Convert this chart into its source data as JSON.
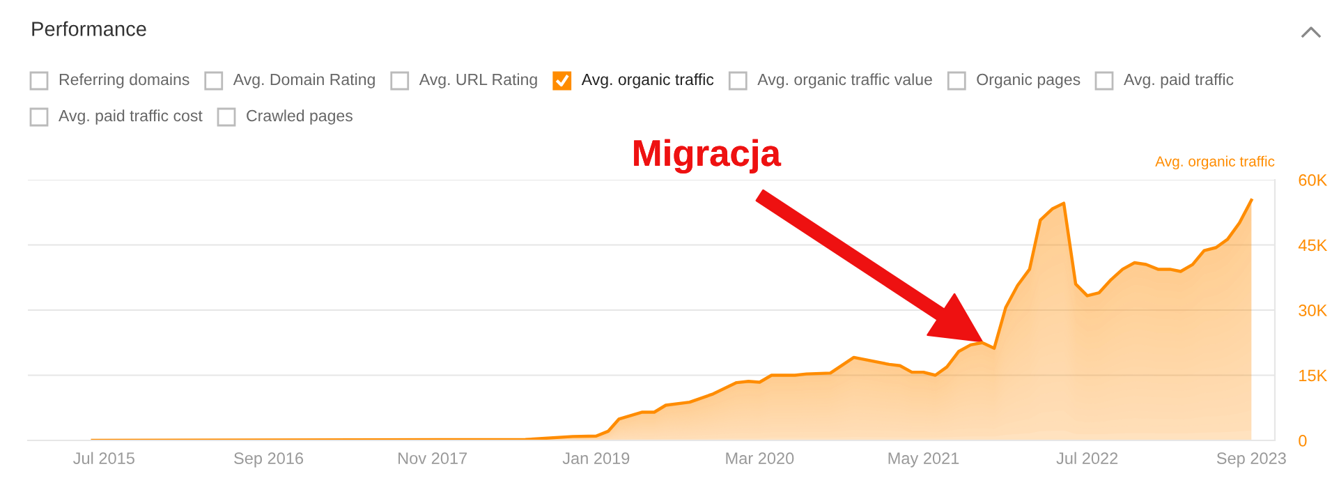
{
  "chart_data": {
    "type": "area",
    "title": "Performance",
    "ylabel": "Avg. organic traffic",
    "annotations": [
      "Referring domains",
      "Avg. Domain Rating",
      "Avg. URL Rating",
      "Avg. organic traffic value",
      "Organic pages",
      "Avg. paid traffic",
      "Avg. paid traffic cost",
      "Crawled pages",
      "Migracja"
    ],
    "x": [
      "2015-06",
      "2018-07",
      "2018-11",
      "2019-01",
      "2019-02",
      "2019-03",
      "2019-05",
      "2019-06",
      "2019-07",
      "2019-09",
      "2019-11",
      "2020-01",
      "2020-02",
      "2020-03",
      "2020-04",
      "2020-06",
      "2020-07",
      "2020-09",
      "2020-11",
      "2021-02",
      "2021-03",
      "2021-04",
      "2021-05",
      "2021-06",
      "2021-07",
      "2021-08",
      "2021-09",
      "2021-10",
      "2021-11",
      "2021-12",
      "2022-01",
      "2022-02",
      "2022-03",
      "2022-04",
      "2022-05",
      "2022-06",
      "2022-07",
      "2022-08",
      "2022-09",
      "2022-10",
      "2022-11",
      "2022-12",
      "2023-01",
      "2023-02",
      "2023-03",
      "2023-04",
      "2023-05",
      "2023-06",
      "2023-07",
      "2023-08",
      "2023-09"
    ],
    "series": [
      {
        "name": "Avg. organic traffic",
        "color": "#ff8c00",
        "values": [
          0,
          200,
          900,
          1000,
          2100,
          4900,
          6500,
          6500,
          8100,
          8800,
          10700,
          13300,
          13600,
          13400,
          15000,
          15000,
          15300,
          15500,
          19100,
          17500,
          17200,
          15700,
          15700,
          15000,
          16900,
          20500,
          22000,
          22500,
          21200,
          30600,
          35700,
          39400,
          50700,
          53300,
          54600,
          36000,
          33300,
          34000,
          37000,
          39400,
          40900,
          40500,
          39400,
          39400,
          38900,
          40500,
          43700,
          44400,
          46300,
          50100,
          55300
        ]
      }
    ],
    "xlim": [
      "2014-12-15",
      "2023-11-01"
    ],
    "xticks": [
      {
        "value": "2015-07-01",
        "label": "Jul 2015"
      },
      {
        "value": "2016-09-01",
        "label": "Sep 2016"
      },
      {
        "value": "2017-11-01",
        "label": "Nov 2017"
      },
      {
        "value": "2019-01-01",
        "label": "Jan 2019"
      },
      {
        "value": "2020-03-01",
        "label": "Mar 2020"
      },
      {
        "value": "2021-05-01",
        "label": "May 2021"
      },
      {
        "value": "2022-07-01",
        "label": "Jul 2022"
      },
      {
        "value": "2023-09-01",
        "label": "Sep 2023"
      }
    ],
    "ylim": [
      0,
      60000
    ],
    "yticks": [
      0,
      {
        "value": 15000,
        "label": "15K"
      },
      {
        "value": 30000,
        "label": "30K"
      },
      {
        "value": 45000,
        "label": "45K"
      },
      {
        "value": 60000,
        "label": "60K"
      }
    ],
    "grid": "y",
    "marker": "none",
    "line_style": "solid"
  }
}
